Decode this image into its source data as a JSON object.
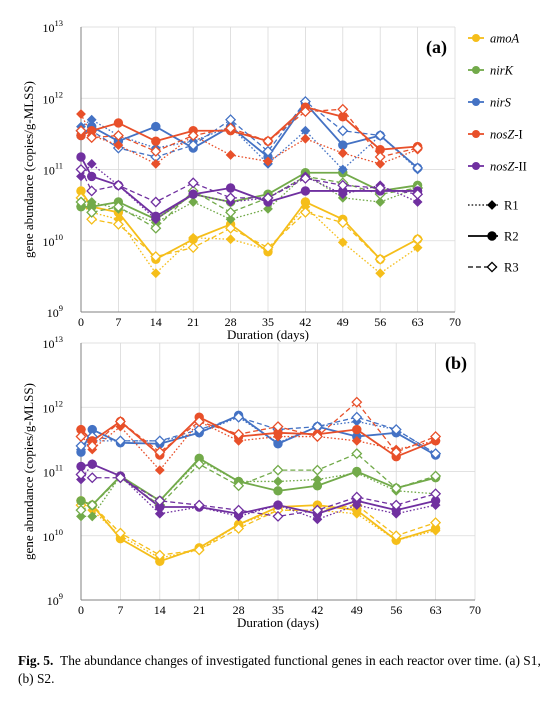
{
  "caption": {
    "label": "Fig. 5.",
    "text": "The abundance changes of investigated functional genes in each reactor over time. (a) S1, (b) S2."
  },
  "legend": {
    "genes": [
      {
        "key": "amoA",
        "prefix": "amoA",
        "suffix": "",
        "color": "#F5BE1A"
      },
      {
        "key": "nirK",
        "prefix": "nirK",
        "suffix": "",
        "color": "#72AA4A"
      },
      {
        "key": "nirS",
        "prefix": "nirS",
        "suffix": "",
        "color": "#4472C4"
      },
      {
        "key": "nosZI",
        "prefix": "nosZ",
        "suffix": "-I",
        "color": "#E8502A"
      },
      {
        "key": "nosZII",
        "prefix": "nosZ",
        "suffix": "-II",
        "color": "#7030A0"
      }
    ],
    "reactors": [
      {
        "label": "R1",
        "line": "dotted",
        "marker": "filled-diamond"
      },
      {
        "label": "R2",
        "line": "solid",
        "marker": "filled-circle"
      },
      {
        "label": "R3",
        "line": "dashed",
        "marker": "open-diamond"
      }
    ]
  },
  "chart_data": [
    {
      "type": "line",
      "panel_label": "(a)",
      "xlabel": "Duration (days)",
      "ylabel": "gene abundance (copies/g-MLSS)",
      "y_scale": "log",
      "x_ticks": [
        0,
        7,
        14,
        21,
        28,
        35,
        42,
        49,
        56,
        63,
        70
      ],
      "y_ticks": [
        {
          "exp": 9,
          "label": "10",
          "sup": "9"
        },
        {
          "exp": 10,
          "label": "10",
          "sup": "10"
        },
        {
          "exp": 11,
          "label": "10",
          "sup": "11"
        },
        {
          "exp": 12,
          "label": "10",
          "sup": "12"
        },
        {
          "exp": 13,
          "label": "10",
          "sup": "13"
        }
      ],
      "xlim": [
        0,
        70
      ],
      "ylim": [
        1000000000.0,
        10000000000000.0
      ],
      "grid": true,
      "x": [
        0,
        2,
        7,
        14,
        21,
        28,
        35,
        42,
        49,
        56,
        63
      ],
      "series": [
        {
          "gene": "amoA",
          "reactor": "R1",
          "values": [
            50000000000.0,
            25000000000.0,
            20000000000.0,
            3500000000.0,
            11000000000.0,
            10500000000.0,
            7500000000.0,
            30000000000.0,
            9500000000.0,
            3500000000.0,
            8000000000.0
          ]
        },
        {
          "gene": "amoA",
          "reactor": "R2",
          "values": [
            50000000000.0,
            30000000000.0,
            25000000000.0,
            5500000000.0,
            10500000000.0,
            17000000000.0,
            7000000000.0,
            35000000000.0,
            20000000000.0,
            5500000000.0,
            10500000000.0
          ]
        },
        {
          "gene": "amoA",
          "reactor": "R3",
          "values": [
            40000000000.0,
            20000000000.0,
            17000000000.0,
            6000000000.0,
            8000000000.0,
            15000000000.0,
            8000000000.0,
            25000000000.0,
            18000000000.0,
            5500000000.0,
            10500000000.0
          ]
        },
        {
          "gene": "nirK",
          "reactor": "R1",
          "values": [
            30000000000.0,
            35000000000.0,
            28000000000.0,
            18000000000.0,
            35000000000.0,
            20000000000.0,
            28000000000.0,
            85000000000.0,
            40000000000.0,
            35000000000.0,
            55000000000.0
          ]
        },
        {
          "gene": "nirK",
          "reactor": "R2",
          "values": [
            30000000000.0,
            30000000000.0,
            35000000000.0,
            20000000000.0,
            45000000000.0,
            35000000000.0,
            45000000000.0,
            90000000000.0,
            90000000000.0,
            50000000000.0,
            60000000000.0
          ]
        },
        {
          "gene": "nirK",
          "reactor": "R3",
          "values": [
            35000000000.0,
            25000000000.0,
            30000000000.0,
            15000000000.0,
            50000000000.0,
            25000000000.0,
            40000000000.0,
            80000000000.0,
            65000000000.0,
            45000000000.0,
            55000000000.0
          ]
        },
        {
          "gene": "nirS",
          "reactor": "R1",
          "values": [
            400000000000.0,
            500000000000.0,
            300000000000.0,
            200000000000.0,
            250000000000.0,
            400000000000.0,
            120000000000.0,
            350000000000.0,
            100000000000.0,
            300000000000.0,
            100000000000.0
          ]
        },
        {
          "gene": "nirS",
          "reactor": "R2",
          "values": [
            300000000000.0,
            400000000000.0,
            250000000000.0,
            400000000000.0,
            200000000000.0,
            400000000000.0,
            150000000000.0,
            850000000000.0,
            220000000000.0,
            300000000000.0,
            105000000000.0
          ]
        },
        {
          "gene": "nirS",
          "reactor": "R3",
          "values": [
            350000000000.0,
            350000000000.0,
            200000000000.0,
            150000000000.0,
            220000000000.0,
            500000000000.0,
            180000000000.0,
            900000000000.0,
            350000000000.0,
            300000000000.0,
            105000000000.0
          ]
        },
        {
          "gene": "nosZI",
          "reactor": "R1",
          "values": [
            600000000000.0,
            300000000000.0,
            220000000000.0,
            120000000000.0,
            300000000000.0,
            160000000000.0,
            130000000000.0,
            270000000000.0,
            170000000000.0,
            120000000000.0,
            190000000000.0
          ]
        },
        {
          "gene": "nosZI",
          "reactor": "R2",
          "values": [
            300000000000.0,
            350000000000.0,
            450000000000.0,
            250000000000.0,
            350000000000.0,
            350000000000.0,
            250000000000.0,
            750000000000.0,
            550000000000.0,
            190000000000.0,
            210000000000.0
          ]
        },
        {
          "gene": "nosZI",
          "reactor": "R3",
          "values": [
            350000000000.0,
            280000000000.0,
            300000000000.0,
            180000000000.0,
            300000000000.0,
            380000000000.0,
            250000000000.0,
            650000000000.0,
            700000000000.0,
            150000000000.0,
            200000000000.0
          ]
        },
        {
          "gene": "nosZII",
          "reactor": "R1",
          "values": [
            80000000000.0,
            120000000000.0,
            60000000000.0,
            20000000000.0,
            45000000000.0,
            35000000000.0,
            40000000000.0,
            80000000000.0,
            45000000000.0,
            60000000000.0,
            35000000000.0
          ]
        },
        {
          "gene": "nosZII",
          "reactor": "R2",
          "values": [
            150000000000.0,
            80000000000.0,
            60000000000.0,
            22000000000.0,
            45000000000.0,
            55000000000.0,
            35000000000.0,
            50000000000.0,
            50000000000.0,
            50000000000.0,
            50000000000.0
          ]
        },
        {
          "gene": "nosZII",
          "reactor": "R3",
          "values": [
            100000000000.0,
            50000000000.0,
            60000000000.0,
            35000000000.0,
            65000000000.0,
            40000000000.0,
            40000000000.0,
            75000000000.0,
            60000000000.0,
            55000000000.0,
            45000000000.0
          ]
        }
      ]
    },
    {
      "type": "line",
      "panel_label": "(b)",
      "xlabel": "Duration (days)",
      "ylabel": "gene abundance (copies/g-MLSS)",
      "y_scale": "log",
      "x_ticks": [
        0,
        7,
        14,
        21,
        28,
        35,
        42,
        49,
        56,
        63,
        70
      ],
      "y_ticks": [
        {
          "exp": 9,
          "label": "10",
          "sup": "9"
        },
        {
          "exp": 10,
          "label": "10",
          "sup": "10"
        },
        {
          "exp": 11,
          "label": "10",
          "sup": "11"
        },
        {
          "exp": 12,
          "label": "10",
          "sup": "12"
        },
        {
          "exp": 13,
          "label": "10",
          "sup": "13"
        }
      ],
      "xlim": [
        0,
        70
      ],
      "ylim": [
        1000000000.0,
        10000000000000.0
      ],
      "grid": true,
      "x": [
        0,
        2,
        7,
        14,
        21,
        28,
        35,
        42,
        49,
        56,
        63
      ],
      "series": [
        {
          "gene": "amoA",
          "reactor": "R1",
          "values": [
            35000000000.0,
            25000000000.0,
            10000000000.0,
            4500000000.0,
            6000000000.0,
            15000000000.0,
            25000000000.0,
            25000000000.0,
            22000000000.0,
            8500000000.0,
            12000000000.0
          ]
        },
        {
          "gene": "amoA",
          "reactor": "R2",
          "values": [
            35000000000.0,
            30000000000.0,
            9000000000.0,
            4000000000.0,
            6500000000.0,
            15000000000.0,
            28000000000.0,
            30000000000.0,
            25000000000.0,
            8500000000.0,
            13000000000.0
          ]
        },
        {
          "gene": "amoA",
          "reactor": "R3",
          "values": [
            30000000000.0,
            30000000000.0,
            11000000000.0,
            5000000000.0,
            6000000000.0,
            13000000000.0,
            25000000000.0,
            25000000000.0,
            30000000000.0,
            10000000000.0,
            16000000000.0
          ]
        },
        {
          "gene": "nirK",
          "reactor": "R1",
          "values": [
            20000000000.0,
            20000000000.0,
            85000000000.0,
            35000000000.0,
            150000000000.0,
            70000000000.0,
            70000000000.0,
            75000000000.0,
            95000000000.0,
            50000000000.0,
            45000000000.0
          ]
        },
        {
          "gene": "nirK",
          "reactor": "R2",
          "values": [
            35000000000.0,
            30000000000.0,
            85000000000.0,
            35000000000.0,
            160000000000.0,
            70000000000.0,
            50000000000.0,
            60000000000.0,
            100000000000.0,
            55000000000.0,
            80000000000.0
          ]
        },
        {
          "gene": "nirK",
          "reactor": "R3",
          "values": [
            25000000000.0,
            30000000000.0,
            80000000000.0,
            30000000000.0,
            130000000000.0,
            60000000000.0,
            105000000000.0,
            105000000000.0,
            190000000000.0,
            55000000000.0,
            85000000000.0
          ]
        },
        {
          "gene": "nirS",
          "reactor": "R1",
          "values": [
            220000000000.0,
            300000000000.0,
            300000000000.0,
            300000000000.0,
            400000000000.0,
            700000000000.0,
            280000000000.0,
            500000000000.0,
            600000000000.0,
            450000000000.0,
            190000000000.0
          ]
        },
        {
          "gene": "nirS",
          "reactor": "R2",
          "values": [
            200000000000.0,
            450000000000.0,
            280000000000.0,
            270000000000.0,
            400000000000.0,
            750000000000.0,
            270000000000.0,
            500000000000.0,
            350000000000.0,
            400000000000.0,
            180000000000.0
          ]
        },
        {
          "gene": "nirS",
          "reactor": "R3",
          "values": [
            250000000000.0,
            350000000000.0,
            300000000000.0,
            300000000000.0,
            450000000000.0,
            700000000000.0,
            450000000000.0,
            500000000000.0,
            700000000000.0,
            450000000000.0,
            190000000000.0
          ]
        },
        {
          "gene": "nosZI",
          "reactor": "R1",
          "values": [
            450000000000.0,
            220000000000.0,
            500000000000.0,
            105000000000.0,
            600000000000.0,
            300000000000.0,
            350000000000.0,
            350000000000.0,
            300000000000.0,
            220000000000.0,
            300000000000.0
          ]
        },
        {
          "gene": "nosZI",
          "reactor": "R2",
          "values": [
            450000000000.0,
            300000000000.0,
            600000000000.0,
            180000000000.0,
            700000000000.0,
            350000000000.0,
            400000000000.0,
            380000000000.0,
            450000000000.0,
            170000000000.0,
            300000000000.0
          ]
        },
        {
          "gene": "nosZI",
          "reactor": "R3",
          "values": [
            350000000000.0,
            250000000000.0,
            600000000000.0,
            200000000000.0,
            600000000000.0,
            380000000000.0,
            500000000000.0,
            350000000000.0,
            1200000000000.0,
            200000000000.0,
            350000000000.0
          ]
        },
        {
          "gene": "nosZII",
          "reactor": "R1",
          "values": [
            75000000000.0,
            130000000000.0,
            85000000000.0,
            22000000000.0,
            28000000000.0,
            20000000000.0,
            30000000000.0,
            18000000000.0,
            30000000000.0,
            22000000000.0,
            30000000000.0
          ]
        },
        {
          "gene": "nosZII",
          "reactor": "R2",
          "values": [
            120000000000.0,
            130000000000.0,
            85000000000.0,
            28000000000.0,
            28000000000.0,
            22000000000.0,
            30000000000.0,
            22000000000.0,
            35000000000.0,
            25000000000.0,
            35000000000.0
          ]
        },
        {
          "gene": "nosZII",
          "reactor": "R3",
          "values": [
            90000000000.0,
            80000000000.0,
            80000000000.0,
            35000000000.0,
            30000000000.0,
            25000000000.0,
            20000000000.0,
            25000000000.0,
            40000000000.0,
            30000000000.0,
            45000000000.0
          ]
        }
      ]
    }
  ]
}
